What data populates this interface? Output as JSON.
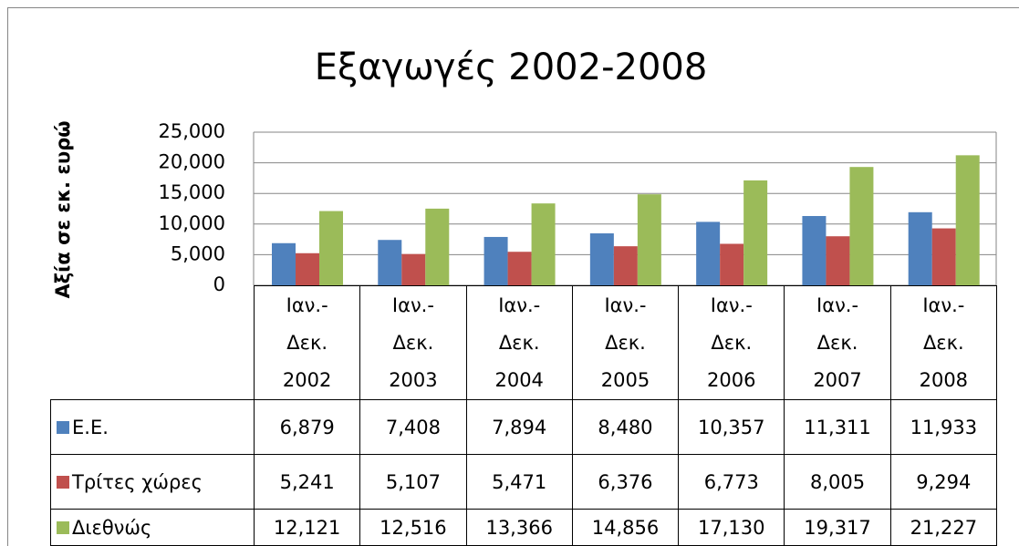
{
  "chart_data": {
    "type": "bar",
    "title": "Εξαγωγές 2002-2008",
    "y_label": "Αξία σε  εκ. ευρώ",
    "categories": [
      "Ιαν.- Δεκ. 2002",
      "Ιαν.- Δεκ. 2003",
      "Ιαν.- Δεκ. 2004",
      "Ιαν.- Δεκ. 2005",
      "Ιαν.- Δεκ. 2006",
      "Ιαν.- Δεκ. 2007",
      "Ιαν.- Δεκ. 2008"
    ],
    "series": [
      {
        "name": "Ε.Ε.",
        "color": "#4f81bd",
        "values": [
          6879,
          7408,
          7894,
          8480,
          10357,
          11311,
          11933
        ],
        "value_labels": [
          "6,879",
          "7,408",
          "7,894",
          "8,480",
          "10,357",
          "11,311",
          "11,933"
        ]
      },
      {
        "name": "Τρίτες χώρες",
        "color": "#c0504d",
        "values": [
          5241,
          5107,
          5471,
          6376,
          6773,
          8005,
          9294
        ],
        "value_labels": [
          "5,241",
          "5,107",
          "5,471",
          "6,376",
          "6,773",
          "8,005",
          "9,294"
        ]
      },
      {
        "name": "Διεθνώς",
        "color": "#9bbb59",
        "values": [
          12121,
          12516,
          13366,
          14856,
          17130,
          19317,
          21227
        ],
        "value_labels": [
          "12,121",
          "12,516",
          "13,366",
          "14,856",
          "17,130",
          "19,317",
          "21,227"
        ]
      }
    ],
    "ylim": [
      0,
      25000
    ],
    "yticks": [
      0,
      {
        "value": 5000,
        "label": "5,000"
      },
      {
        "value": 10000,
        "label": "10,000"
      },
      {
        "value": 15000,
        "label": "15,000"
      },
      {
        "value": 20000,
        "label": "20,000"
      },
      {
        "value": 25000,
        "label": "25,000"
      }
    ],
    "grid": true
  }
}
